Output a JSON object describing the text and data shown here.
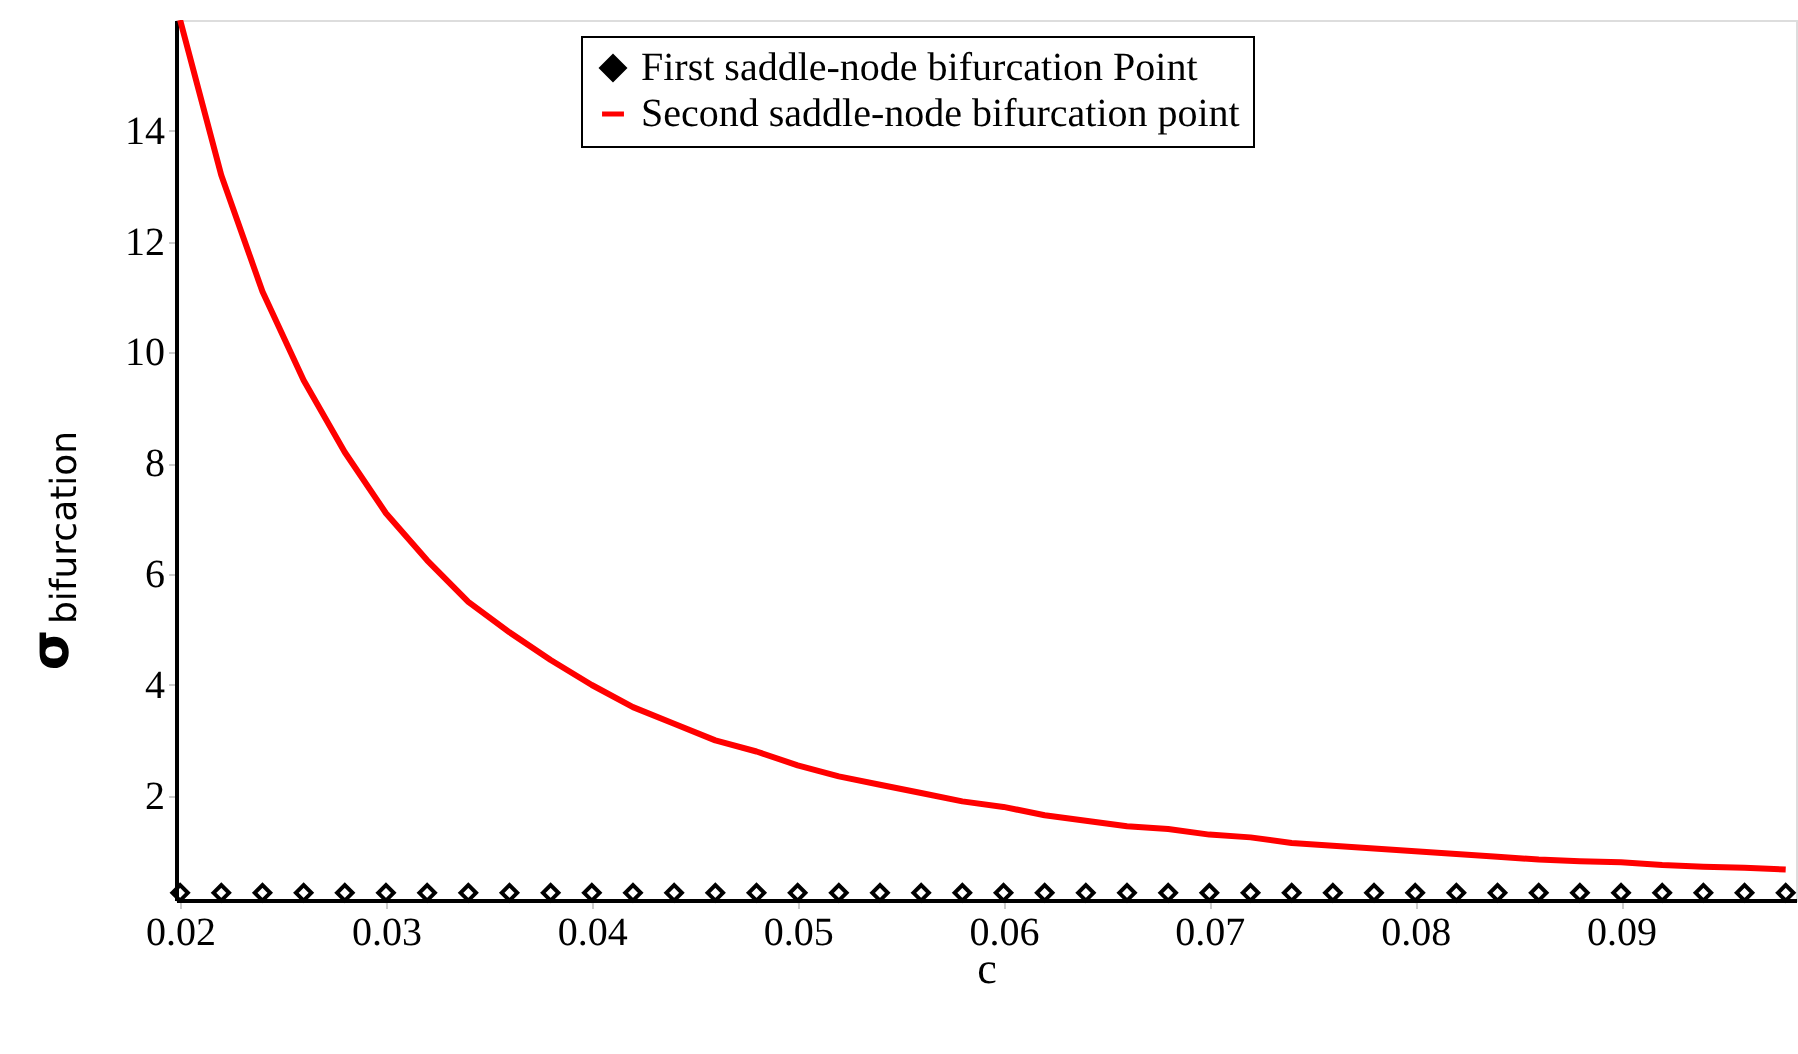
{
  "chart_data": {
    "type": "line",
    "xlabel": "c",
    "ylabel": "σ$_{bifurcation}$",
    "x": [
      0.02,
      0.022,
      0.024,
      0.026,
      0.028,
      0.03,
      0.032,
      0.034,
      0.036,
      0.038,
      0.04,
      0.042,
      0.044,
      0.046,
      0.048,
      0.05,
      0.052,
      0.054,
      0.056,
      0.058,
      0.06,
      0.062,
      0.064,
      0.066,
      0.068,
      0.07,
      0.072,
      0.074,
      0.076,
      0.078,
      0.08,
      0.082,
      0.084,
      0.086,
      0.088,
      0.09,
      0.092,
      0.094,
      0.096,
      0.098
    ],
    "series": [
      {
        "name": "First saddle-node bifurcation Point",
        "type": "scatter",
        "marker": "diamond",
        "color": "#000000",
        "values": [
          0.25,
          0.25,
          0.25,
          0.25,
          0.25,
          0.25,
          0.25,
          0.25,
          0.25,
          0.25,
          0.25,
          0.25,
          0.25,
          0.25,
          0.25,
          0.25,
          0.25,
          0.25,
          0.25,
          0.25,
          0.25,
          0.25,
          0.25,
          0.25,
          0.25,
          0.25,
          0.25,
          0.25,
          0.25,
          0.25,
          0.25,
          0.25,
          0.25,
          0.25,
          0.25,
          0.25,
          0.25,
          0.25,
          0.25,
          0.25
        ]
      },
      {
        "name": "Second saddle-node bifurcation point",
        "line_style": "solid",
        "color": "#ff0000",
        "values": [
          16.0,
          13.2,
          11.1,
          9.5,
          8.2,
          7.1,
          6.25,
          5.5,
          4.95,
          4.45,
          4.0,
          3.6,
          3.3,
          3.0,
          2.8,
          2.55,
          2.35,
          2.2,
          2.05,
          1.9,
          1.8,
          1.65,
          1.55,
          1.45,
          1.4,
          1.3,
          1.25,
          1.15,
          1.1,
          1.05,
          1.0,
          0.95,
          0.9,
          0.85,
          0.82,
          0.8,
          0.75,
          0.72,
          0.7,
          0.67
        ]
      }
    ],
    "xlim": [
      0.0198,
      0.0985
    ],
    "ylim": [
      0.12,
      16.0
    ],
    "xticks": [
      0.02,
      0.03,
      0.04,
      0.05,
      0.06,
      0.07,
      0.08,
      0.09
    ],
    "yticks": [
      2,
      4,
      6,
      8,
      10,
      12,
      14
    ],
    "grid": false,
    "legend": "top"
  }
}
